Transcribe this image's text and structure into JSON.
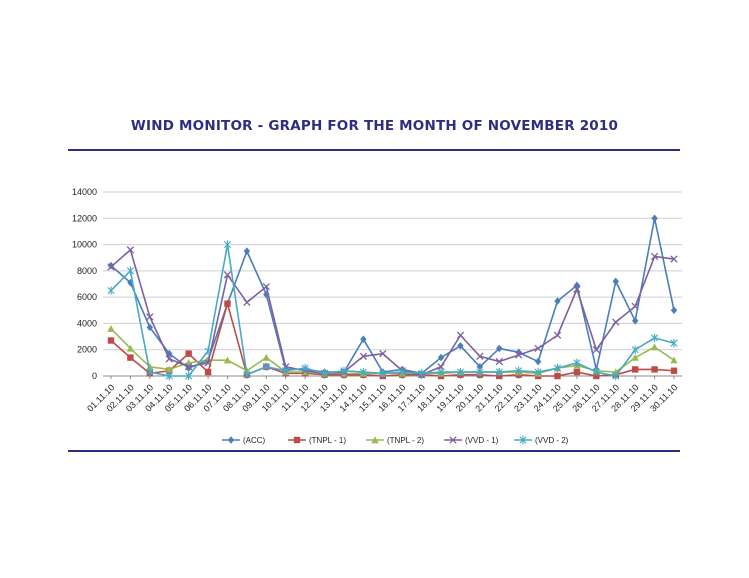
{
  "title": "WIND MONITOR - GRAPH FOR THE MONTH OF NOVEMBER 2010",
  "chart_data": {
    "type": "line",
    "title": "WIND MONITOR - GRAPH FOR THE MONTH OF NOVEMBER 2010",
    "xlabel": "",
    "ylabel": "",
    "ylim": [
      0,
      14000
    ],
    "yticks": [
      "0",
      "2000",
      "4000",
      "6000",
      "8000",
      "10000",
      "12000",
      "14000"
    ],
    "grid": true,
    "legend_position": "bottom",
    "categories": [
      "01.11.10",
      "02.11.10",
      "03.11.10",
      "04.11.10",
      "05.11.10",
      "06.11.10",
      "07.11.10",
      "08.11.10",
      "09.11.10",
      "10.11.10",
      "11.11.10",
      "12.11.10",
      "13.11.10",
      "14.11.10",
      "15.11.10",
      "16.11.10",
      "17.11.10",
      "18.11.10",
      "19.11.10",
      "20.11.10",
      "21.11.10",
      "22.11.10",
      "23.11.10",
      "24.11.10",
      "25.11.10",
      "26.11.10",
      "27.11.10",
      "28.11.10",
      "29.11.10",
      "30.11.10"
    ],
    "series": [
      {
        "name": "(ACC)",
        "color": "#4a7ebb",
        "marker": "diamond",
        "values": [
          8400,
          7100,
          3700,
          1700,
          600,
          1200,
          5500,
          9500,
          6200,
          500,
          500,
          300,
          300,
          2800,
          300,
          500,
          200,
          1400,
          2300,
          700,
          2100,
          1800,
          1100,
          5700,
          6900,
          500,
          7200,
          4200,
          12000,
          5000
        ]
      },
      {
        "name": "(TNPL - 1)",
        "color": "#be4b48",
        "marker": "square",
        "values": [
          2700,
          1400,
          200,
          400,
          1700,
          300,
          5500,
          100,
          700,
          200,
          200,
          100,
          100,
          100,
          0,
          100,
          100,
          0,
          100,
          100,
          0,
          100,
          0,
          0,
          300,
          0,
          100,
          500,
          500,
          400
        ]
      },
      {
        "name": "(TNPL - 2)",
        "color": "#98b954",
        "marker": "triangle",
        "values": [
          3600,
          2100,
          700,
          500,
          1000,
          1200,
          1200,
          400,
          1400,
          300,
          300,
          200,
          200,
          200,
          200,
          200,
          200,
          200,
          300,
          300,
          300,
          300,
          200,
          600,
          800,
          400,
          300,
          1400,
          2200,
          1200
        ]
      },
      {
        "name": "(VVD - 1)",
        "color": "#7d60a0",
        "marker": "x",
        "values": [
          8300,
          9600,
          4500,
          1300,
          700,
          1000,
          7700,
          5600,
          6800,
          700,
          400,
          200,
          300,
          1500,
          1700,
          400,
          100,
          700,
          3100,
          1500,
          1100,
          1600,
          2100,
          3100,
          6600,
          2000,
          4100,
          5300,
          9100,
          8900
        ]
      },
      {
        "name": "(VVD - 2)",
        "color": "#46aac5",
        "marker": "star",
        "values": [
          6500,
          8000,
          300,
          0,
          0,
          1900,
          10000,
          100,
          700,
          400,
          600,
          200,
          400,
          300,
          200,
          300,
          200,
          300,
          300,
          300,
          300,
          400,
          300,
          600,
          1000,
          300,
          0,
          2000,
          2900,
          2500
        ]
      }
    ]
  }
}
